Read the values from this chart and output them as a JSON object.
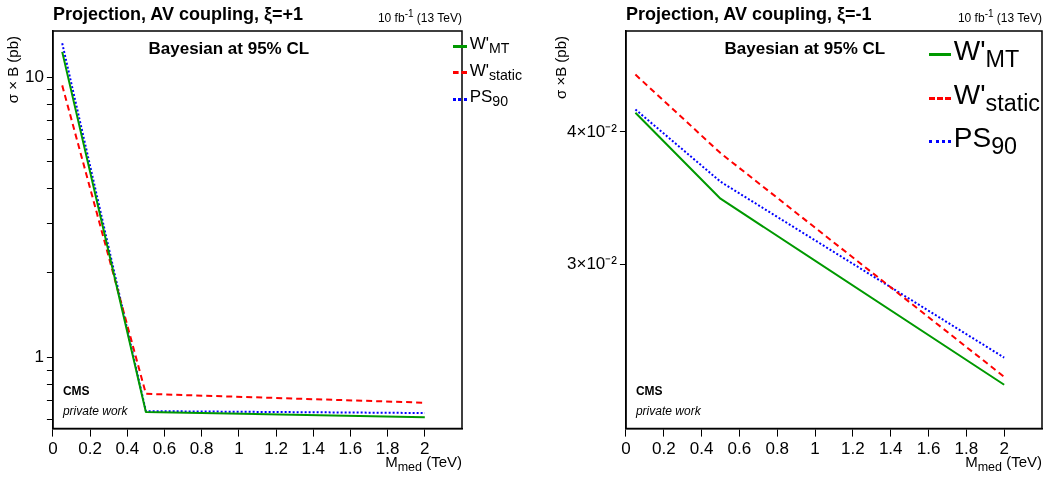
{
  "chart_data": [
    {
      "type": "line",
      "title": "Projection, AV coupling, ξ=+1",
      "subtitle": "10 fb$^{-1}$ (13 TeV)",
      "xlabel": "M$_{med}$ (TeV)",
      "ylabel": "σ × B (pb)",
      "annotations": [
        "Bayesian at 95% CL",
        "CMS",
        "private work"
      ],
      "x": [
        0.05,
        0.5,
        2
      ],
      "series": [
        {
          "name": "W'$_{MT}$",
          "color": "#009900",
          "line_style": "solid",
          "values": [
            12.3,
            0.638,
            0.612
          ]
        },
        {
          "name": "W'$_{static}$",
          "color": "#ff0000",
          "line_style": "dashed",
          "values": [
            9.34,
            0.741,
            0.689
          ]
        },
        {
          "name": "PS$_{90}$",
          "color": "#0000ff",
          "line_style": "dotted",
          "values": [
            13.2,
            0.643,
            0.633
          ]
        }
      ],
      "log": "y",
      "xlim": [
        0,
        2.2
      ],
      "ylim": [
        0.557,
        14.6
      ],
      "xticks": [
        0,
        0.2,
        0.4,
        0.6,
        0.8,
        1,
        1.2,
        1.4,
        1.6,
        1.8,
        2
      ],
      "yticks": [
        {
          "value": 0.6,
          "label": null
        },
        {
          "value": 0.7,
          "label": null
        },
        {
          "value": 0.8,
          "label": null
        },
        {
          "value": 0.9,
          "label": null
        },
        1,
        {
          "value": 2,
          "label": null
        },
        {
          "value": 3,
          "label": null
        },
        {
          "value": 4,
          "label": null
        },
        {
          "value": 5,
          "label": null
        },
        {
          "value": 6,
          "label": null
        },
        {
          "value": 7,
          "label": null
        },
        {
          "value": 8,
          "label": null
        },
        {
          "value": 9,
          "label": null
        },
        10
      ],
      "grid": false,
      "legend": "top right",
      "marker": "none"
    },
    {
      "type": "line",
      "title": "Projection, AV coupling, ξ=-1",
      "subtitle": "10 fb$^{-1}$ (13 TeV)",
      "xlabel": "M$_{med}$ (TeV)",
      "ylabel": "σ ×B (pb)",
      "annotations": [
        "Bayesian at 95% CL",
        "CMS",
        "private work"
      ],
      "x": [
        0.05,
        0.5,
        2
      ],
      "series": [
        {
          "name": "W'$_{MT}$",
          "color": "#009900",
          "line_style": "solid",
          "values": [
            0.0417,
            0.0346,
            0.0231
          ]
        },
        {
          "name": "W'$_{static}$",
          "color": "#ff0000",
          "line_style": "dashed",
          "values": [
            0.0453,
            0.0382,
            0.0235
          ]
        },
        {
          "name": "PS$_{90}$",
          "color": "#0000ff",
          "line_style": "dotted",
          "values": [
            0.042,
            0.0359,
            0.0245
          ]
        }
      ],
      "log": "y",
      "xlim": [
        0,
        2.2
      ],
      "ylim": [
        0.021,
        0.0498
      ],
      "xticks": [
        0,
        0.2,
        0.4,
        0.6,
        0.8,
        1,
        1.2,
        1.4,
        1.6,
        1.8,
        2
      ],
      "yticks": [
        {
          "value": 0.03,
          "label": "3×10⁻²"
        },
        {
          "value": 0.04,
          "label": "4×10⁻²"
        }
      ],
      "grid": false,
      "legend": "top right",
      "marker": "none"
    }
  ]
}
